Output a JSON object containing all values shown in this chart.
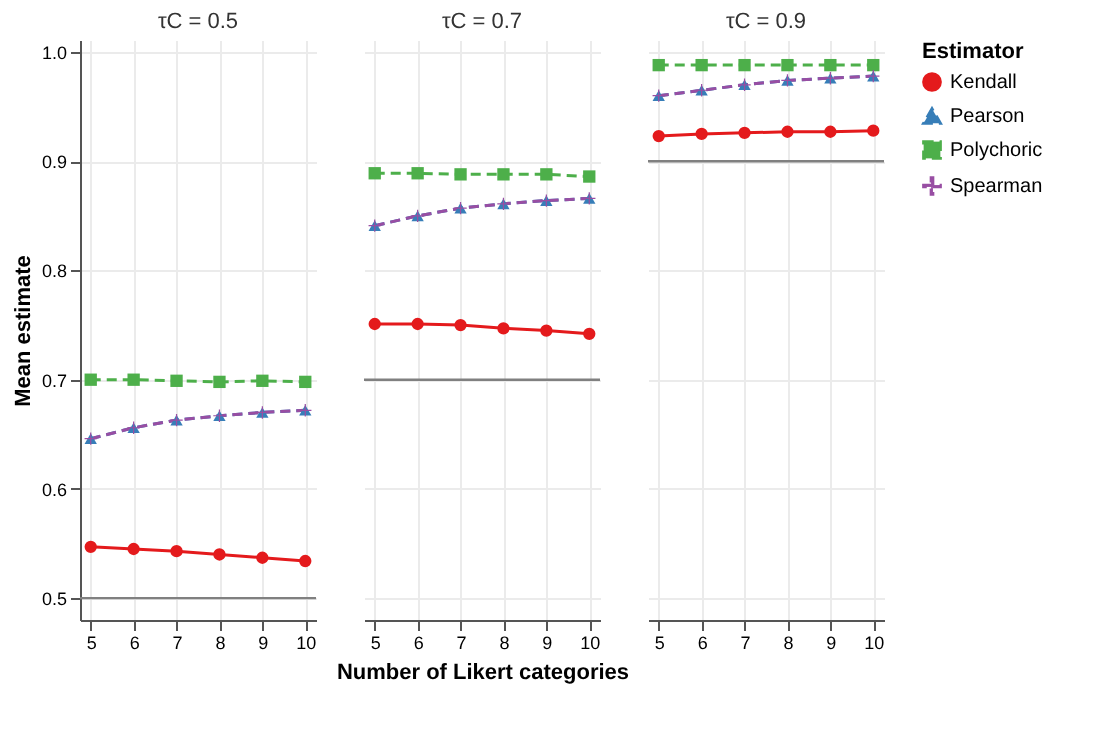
{
  "chart_data": [
    {
      "type": "line",
      "title": "τC = 0.5",
      "ylabel": "Mean estimate",
      "x": [
        5,
        6,
        7,
        8,
        9,
        10
      ],
      "xlim": [
        4.75,
        10.25
      ],
      "xticks": [
        5,
        6,
        7,
        8,
        9,
        10
      ],
      "ylim": [
        0.48,
        1.011
      ],
      "yticks": [
        0.5,
        0.6,
        0.7,
        0.8,
        0.9,
        {
          "value": 1,
          "label": "1.0"
        }
      ],
      "grid": true,
      "legend": "right",
      "ref_lines": [
        {
          "axis": "y",
          "value": 0.5,
          "color": "#808080"
        }
      ],
      "series": [
        {
          "name": "Kendall",
          "color": "#e41a1c",
          "marker": "circle",
          "line_style": "solid",
          "values": [
            0.547,
            0.545,
            0.543,
            0.54,
            0.537,
            0.534
          ]
        },
        {
          "name": "Pearson",
          "color": "#377eb8",
          "marker": "triangle",
          "line_style": "dashed",
          "values": [
            0.646,
            0.656,
            0.663,
            0.667,
            0.67,
            0.672
          ]
        },
        {
          "name": "Polychoric",
          "color": "#4daf4a",
          "marker": "square",
          "line_style": "dashed",
          "values": [
            0.7,
            0.7,
            0.699,
            0.698,
            0.699,
            0.698
          ]
        },
        {
          "name": "Spearman",
          "color": "#984ea3",
          "marker": "cross",
          "line_style": "dashed",
          "values": [
            0.646,
            0.656,
            0.663,
            0.667,
            0.67,
            0.672
          ]
        }
      ]
    },
    {
      "type": "line",
      "title": "τC = 0.7",
      "xlabel": "Number of Likert categories",
      "x": [
        5,
        6,
        7,
        8,
        9,
        10
      ],
      "xlim": [
        4.75,
        10.25
      ],
      "xticks": [
        5,
        6,
        7,
        8,
        9,
        10
      ],
      "ylim": [
        0.48,
        1.011
      ],
      "yticks": [
        0.5,
        0.6,
        0.7,
        0.8,
        0.9,
        1.0
      ],
      "grid": true,
      "legend": "right",
      "tick_labels": "x",
      "ref_lines": [
        {
          "axis": "y",
          "value": 0.7,
          "color": "#808080"
        }
      ],
      "series": [
        {
          "name": "Kendall",
          "color": "#e41a1c",
          "marker": "circle",
          "line_style": "solid",
          "values": [
            0.751,
            0.751,
            0.75,
            0.747,
            0.745,
            0.742
          ]
        },
        {
          "name": "Pearson",
          "color": "#377eb8",
          "marker": "triangle",
          "line_style": "dashed",
          "values": [
            0.841,
            0.85,
            0.857,
            0.861,
            0.864,
            0.866
          ]
        },
        {
          "name": "Polychoric",
          "color": "#4daf4a",
          "marker": "square",
          "line_style": "dashed",
          "values": [
            0.889,
            0.889,
            0.888,
            0.888,
            0.888,
            0.886
          ]
        },
        {
          "name": "Spearman",
          "color": "#984ea3",
          "marker": "cross",
          "line_style": "dashed",
          "values": [
            0.841,
            0.85,
            0.857,
            0.861,
            0.864,
            0.866
          ]
        }
      ]
    },
    {
      "type": "line",
      "title": "τC = 0.9",
      "legend_title": "Estimator",
      "x": [
        5,
        6,
        7,
        8,
        9,
        10
      ],
      "xlim": [
        4.75,
        10.25
      ],
      "xticks": [
        5,
        6,
        7,
        8,
        9,
        10
      ],
      "ylim": [
        0.48,
        1.011
      ],
      "yticks": [
        0.5,
        0.6,
        0.7,
        0.8,
        0.9,
        1.0
      ],
      "grid": true,
      "legend": "right",
      "tick_labels": "x",
      "ref_lines": [
        {
          "axis": "y",
          "value": 0.9,
          "color": "#808080"
        }
      ],
      "series": [
        {
          "name": "Kendall",
          "color": "#e41a1c",
          "marker": "circle",
          "line_style": "solid",
          "values": [
            0.923,
            0.925,
            0.926,
            0.927,
            0.927,
            0.928
          ]
        },
        {
          "name": "Pearson",
          "color": "#377eb8",
          "marker": "triangle",
          "line_style": "dashed",
          "values": [
            0.96,
            0.965,
            0.97,
            0.974,
            0.976,
            0.978
          ]
        },
        {
          "name": "Polychoric",
          "color": "#4daf4a",
          "marker": "square",
          "line_style": "dashed",
          "values": [
            0.988,
            0.988,
            0.988,
            0.988,
            0.988,
            0.988
          ]
        },
        {
          "name": "Spearman",
          "color": "#984ea3",
          "marker": "cross",
          "line_style": "dashed",
          "values": [
            0.96,
            0.965,
            0.97,
            0.974,
            0.976,
            0.978
          ]
        }
      ]
    }
  ]
}
